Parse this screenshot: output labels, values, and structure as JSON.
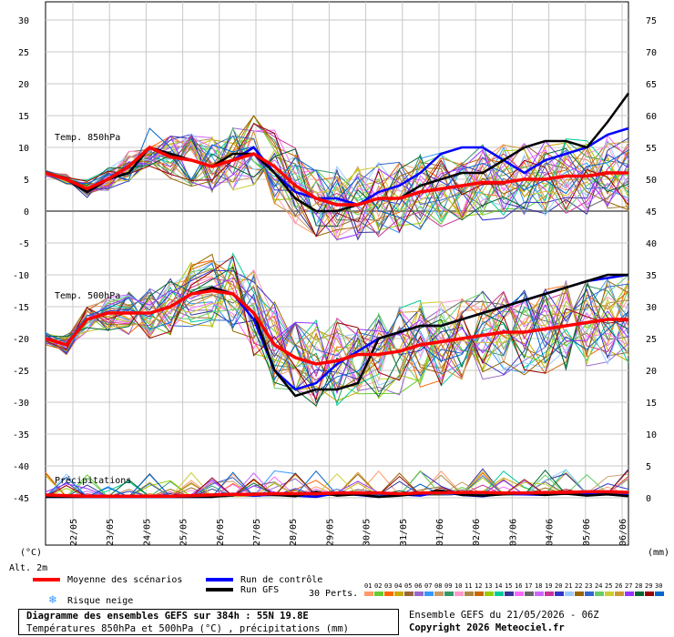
{
  "chart_data": {
    "type": "line",
    "title": "Diagramme des ensembles GEFS sur 384h : 55N 19.8E",
    "subtitle": "Températures 850hPa et 500hPa (°C) , précipitations (mm)",
    "source": "Ensemble GEFS du 21/05/2026 - 06Z",
    "copyright": "Copyright 2026 Meteociel.fr",
    "left_axis_unit": "(°C)",
    "right_axis_unit": "(mm)",
    "alt_label": "Alt. 2m",
    "left_ticks": [
      "30",
      "25",
      "20",
      "15",
      "10",
      "5",
      "0",
      "-5",
      "-10",
      "-15",
      "-20",
      "-25",
      "-30",
      "-35",
      "-40",
      "-45"
    ],
    "right_ticks": [
      "75",
      "70",
      "65",
      "60",
      "55",
      "50",
      "45",
      "40",
      "35",
      "30",
      "25",
      "20",
      "15",
      "10",
      "5",
      "0"
    ],
    "x_dates": [
      "22/05",
      "23/05",
      "24/05",
      "25/05",
      "26/05",
      "27/05",
      "28/05",
      "29/05",
      "30/05",
      "31/05",
      "01/06",
      "02/06",
      "03/06",
      "04/06",
      "05/06",
      "06/06"
    ],
    "panel_labels": {
      "t850": "Temp. 850hPa",
      "t500": "Temp. 500hPa",
      "precip": "Précipitations"
    },
    "legend": {
      "mean": "Moyenne des scénarios",
      "control": "Run de contrôle",
      "gfs": "Run GFS",
      "snow": "Risque neige",
      "perts": "30 Perts.",
      "members": [
        "01",
        "02",
        "03",
        "04",
        "05",
        "06",
        "07",
        "08",
        "09",
        "10",
        "11",
        "12",
        "13",
        "14",
        "15",
        "16",
        "17",
        "18",
        "19",
        "20",
        "21",
        "22",
        "23",
        "24",
        "25",
        "26",
        "27",
        "28",
        "29",
        "30"
      ]
    },
    "colors": {
      "mean": "#ff0000",
      "control": "#0000ff",
      "gfs": "#000000",
      "snow": "#3399ff",
      "members": [
        "#ff9966",
        "#66cc33",
        "#ff6600",
        "#ccaa00",
        "#996633",
        "#9966cc",
        "#3399ff",
        "#cc9966",
        "#339966",
        "#ff99cc",
        "#aa8844",
        "#cc6600",
        "#99cc00",
        "#00cc99",
        "#333399",
        "#ff66ff",
        "#666666",
        "#cc66ff",
        "#cc3399",
        "#3333cc",
        "#99ccff",
        "#996600",
        "#3366cc",
        "#66cc66",
        "#cccc33",
        "#cc9933",
        "#9933ff",
        "#006633",
        "#990000",
        "#0066cc"
      ]
    },
    "series": [
      {
        "name": "Moyenne des scénarios",
        "t850": [
          6,
          5,
          3.5,
          5,
          7,
          10,
          8.5,
          8,
          7,
          8,
          9,
          7,
          4,
          2,
          1,
          1,
          2,
          2,
          3,
          3.5,
          4,
          4.5,
          4.5,
          5,
          5,
          5.5,
          5.5,
          6,
          6
        ],
        "t500": [
          -20,
          -21,
          -17,
          -16,
          -16,
          -16,
          -15,
          -13,
          -12.5,
          -13,
          -16,
          -21,
          -23,
          -24,
          -23.5,
          -22.5,
          -22.5,
          -22,
          -21,
          -20.5,
          -20,
          -19.5,
          -19,
          -19,
          -18.5,
          -18,
          -17.5,
          -17,
          -17
        ],
        "precip": [
          0.3,
          0.2,
          0.1,
          0.1,
          0.1,
          0.1,
          0.1,
          0.2,
          0.3,
          0.4,
          0.4,
          0.5,
          0.5,
          0.5,
          0.6,
          0.6,
          0.6,
          0.5,
          0.6,
          0.6,
          0.7,
          0.7,
          0.6,
          0.6,
          0.7,
          0.7,
          0.8,
          0.8,
          0.7
        ]
      },
      {
        "name": "Run de contrôle",
        "t850": [
          6,
          5,
          3,
          5,
          6,
          10,
          9,
          8,
          7,
          8,
          10,
          6,
          3,
          2,
          2,
          1,
          3,
          4,
          6,
          9,
          10,
          10,
          8,
          6,
          8,
          9,
          10,
          12,
          13
        ],
        "t500": [
          -20,
          -21,
          -17,
          -16,
          -16,
          -16,
          -15,
          -13,
          -12,
          -13,
          -17,
          -25,
          -28,
          -27,
          -24,
          -22,
          -20,
          -19,
          -18,
          -18,
          -17,
          -16,
          -15,
          -14,
          -13,
          -12,
          -11,
          -10.5,
          -10
        ],
        "precip": [
          0,
          0,
          0,
          0,
          0,
          0,
          0,
          0,
          0,
          0.5,
          0.2,
          0.4,
          0.2,
          0,
          0.6,
          0.3,
          0,
          0.4,
          0.2,
          0.8,
          0.3,
          0.1,
          0.5,
          0.4,
          0.3,
          0.8,
          0.5,
          0.4,
          0.2
        ]
      },
      {
        "name": "Run GFS",
        "t850": [
          6,
          5,
          3,
          5,
          6,
          10,
          9,
          8,
          7,
          9,
          9,
          6,
          2,
          0,
          0,
          1,
          2,
          2,
          4,
          5,
          6,
          6,
          8,
          10,
          11,
          11,
          10,
          14,
          18.5
        ],
        "t500": [
          -20,
          -21,
          -17,
          -16,
          -16,
          -16,
          -15,
          -13,
          -12,
          -13,
          -16,
          -25,
          -29,
          -28,
          -28,
          -27,
          -20,
          -19,
          -18,
          -18,
          -17,
          -16,
          -15,
          -14,
          -13,
          -12,
          -11,
          -10,
          -10
        ],
        "precip": [
          0,
          0,
          0,
          0,
          0,
          0,
          0,
          0,
          0,
          0.3,
          0.5,
          0.3,
          0.1,
          0.8,
          0.2,
          0.4,
          0,
          0.2,
          0.5,
          1,
          0.3,
          0.2,
          0.4,
          0.6,
          0.3,
          0.5,
          0.2,
          0.4,
          0.1
        ]
      }
    ],
    "ylim_left": [
      -45,
      30
    ],
    "ylim_right": [
      0,
      75
    ],
    "grid": true
  }
}
